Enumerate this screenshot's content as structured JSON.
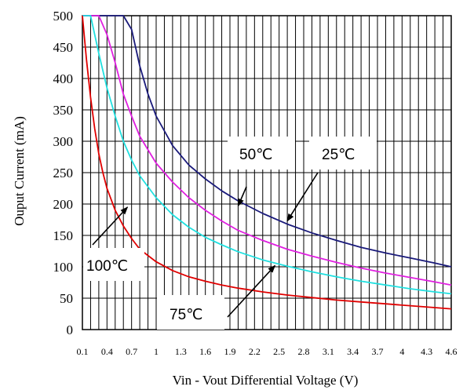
{
  "chart_data": {
    "type": "line",
    "title": "",
    "xlabel": "Vin - Vout Differential Voltage (V)",
    "ylabel": "Ouput Current (mA)",
    "xlim": [
      0.1,
      4.6
    ],
    "ylim": [
      0,
      500
    ],
    "grid": true,
    "x_ticks": [
      "0.1",
      "0.4",
      "0.7",
      "1",
      "1.3",
      "1.6",
      "1.9",
      "2.2",
      "2.5",
      "2.8",
      "3.1",
      "3.4",
      "3.7",
      "4",
      "4.3",
      "4.6"
    ],
    "y_ticks": [
      "0",
      "50",
      "100",
      "150",
      "200",
      "250",
      "300",
      "350",
      "400",
      "450",
      "500"
    ],
    "series": [
      {
        "name": "25℃",
        "color": "#1a1a7a",
        "points": [
          [
            0.1,
            500
          ],
          [
            0.55,
            500
          ],
          [
            0.6,
            500
          ],
          [
            0.7,
            478
          ],
          [
            0.8,
            420
          ],
          [
            0.9,
            375
          ],
          [
            1.0,
            340
          ],
          [
            1.2,
            293
          ],
          [
            1.4,
            262
          ],
          [
            1.6,
            240
          ],
          [
            1.8,
            221
          ],
          [
            2.0,
            205
          ],
          [
            2.3,
            185
          ],
          [
            2.6,
            168
          ],
          [
            2.9,
            154
          ],
          [
            3.2,
            142
          ],
          [
            3.5,
            131
          ],
          [
            3.8,
            122
          ],
          [
            4.1,
            114
          ],
          [
            4.4,
            106
          ],
          [
            4.6,
            100
          ]
        ]
      },
      {
        "name": "50℃",
        "color": "#e020e0",
        "points": [
          [
            0.1,
            500
          ],
          [
            0.3,
            500
          ],
          [
            0.4,
            470
          ],
          [
            0.5,
            425
          ],
          [
            0.6,
            375
          ],
          [
            0.7,
            340
          ],
          [
            0.8,
            308
          ],
          [
            1.0,
            265
          ],
          [
            1.2,
            235
          ],
          [
            1.4,
            210
          ],
          [
            1.6,
            190
          ],
          [
            1.8,
            173
          ],
          [
            2.0,
            158
          ],
          [
            2.3,
            142
          ],
          [
            2.6,
            128
          ],
          [
            2.9,
            117
          ],
          [
            3.2,
            107
          ],
          [
            3.5,
            98
          ],
          [
            3.8,
            90
          ],
          [
            4.1,
            83
          ],
          [
            4.4,
            76
          ],
          [
            4.6,
            71
          ]
        ]
      },
      {
        "name": "75℃",
        "color": "#20e0e0",
        "points": [
          [
            0.1,
            500
          ],
          [
            0.2,
            500
          ],
          [
            0.3,
            440
          ],
          [
            0.4,
            385
          ],
          [
            0.5,
            340
          ],
          [
            0.6,
            300
          ],
          [
            0.7,
            270
          ],
          [
            0.8,
            245
          ],
          [
            1.0,
            210
          ],
          [
            1.2,
            183
          ],
          [
            1.4,
            163
          ],
          [
            1.6,
            147
          ],
          [
            1.8,
            135
          ],
          [
            2.0,
            124
          ],
          [
            2.3,
            111
          ],
          [
            2.6,
            101
          ],
          [
            2.9,
            92
          ],
          [
            3.2,
            84
          ],
          [
            3.5,
            77
          ],
          [
            3.8,
            71
          ],
          [
            4.1,
            65
          ],
          [
            4.4,
            60
          ],
          [
            4.6,
            57
          ]
        ]
      },
      {
        "name": "100℃",
        "color": "#e00000",
        "points": [
          [
            0.1,
            500
          ],
          [
            0.15,
            430
          ],
          [
            0.2,
            370
          ],
          [
            0.25,
            320
          ],
          [
            0.3,
            280
          ],
          [
            0.35,
            250
          ],
          [
            0.4,
            225
          ],
          [
            0.5,
            190
          ],
          [
            0.6,
            165
          ],
          [
            0.7,
            145
          ],
          [
            0.8,
            128
          ],
          [
            1.0,
            108
          ],
          [
            1.2,
            94
          ],
          [
            1.4,
            84
          ],
          [
            1.6,
            77
          ],
          [
            1.8,
            71
          ],
          [
            2.0,
            66
          ],
          [
            2.3,
            60
          ],
          [
            2.6,
            55
          ],
          [
            2.9,
            51
          ],
          [
            3.2,
            47
          ],
          [
            3.5,
            44
          ],
          [
            3.8,
            41
          ],
          [
            4.1,
            38
          ],
          [
            4.4,
            35
          ],
          [
            4.6,
            33
          ]
        ]
      }
    ],
    "annotations": [
      {
        "label": "50℃",
        "series": "50℃",
        "target_x": 2.0,
        "target_y": 197
      },
      {
        "label": "25℃",
        "series": "25℃",
        "target_x": 2.6,
        "target_y": 173
      },
      {
        "label": "100℃",
        "series": "100℃",
        "target_x": 0.65,
        "target_y": 195
      },
      {
        "label": "75℃",
        "series": "75℃",
        "target_x": 2.45,
        "target_y": 102
      }
    ]
  }
}
